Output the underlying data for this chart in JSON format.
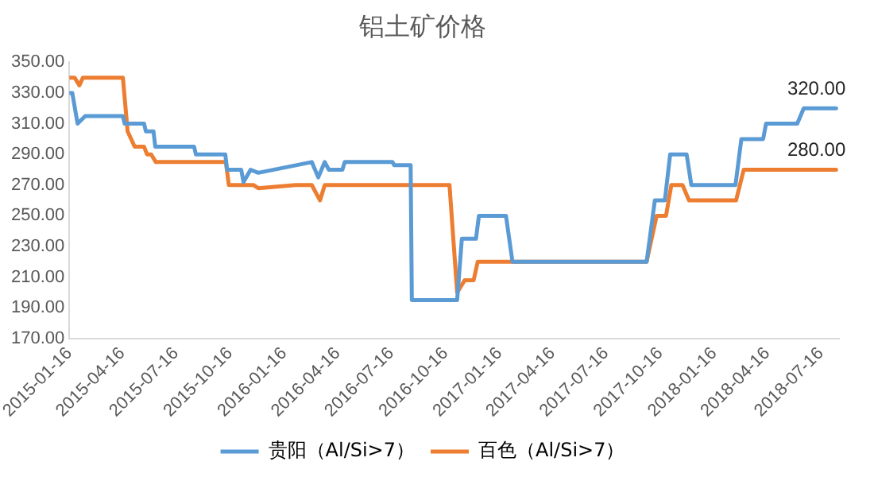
{
  "chart_data": {
    "type": "line",
    "title": "铝土矿价格",
    "xlim": [
      "2015-01-16",
      "2018-08-16"
    ],
    "xticks": [
      "2015-01-16",
      "2015-04-16",
      "2015-07-16",
      "2015-10-16",
      "2016-01-16",
      "2016-04-16",
      "2016-07-16",
      "2016-10-16",
      "2017-01-16",
      "2017-04-16",
      "2017-07-16",
      "2017-10-16",
      "2018-01-16",
      "2018-04-16",
      "2018-07-16"
    ],
    "ylim": [
      170,
      350
    ],
    "yticks": [
      {
        "value": 170,
        "label": "170.00"
      },
      {
        "value": 190,
        "label": "190.00"
      },
      {
        "value": 210,
        "label": "210.00"
      },
      {
        "value": 230,
        "label": "230.00"
      },
      {
        "value": 250,
        "label": "250.00"
      },
      {
        "value": 270,
        "label": "270.00"
      },
      {
        "value": 290,
        "label": "290.00"
      },
      {
        "value": 310,
        "label": "310.00"
      },
      {
        "value": 330,
        "label": "330.00"
      },
      {
        "value": 350,
        "label": "350.00"
      }
    ],
    "grid": false,
    "legend": "bottom",
    "marker": "none",
    "line_style": "solid",
    "series": [
      {
        "name": "贵阳（Al/Si>7）",
        "color": "#5b9bd5",
        "x": [
          "2015-01-16",
          "2015-01-21",
          "2015-01-30",
          "2015-02-12",
          "2015-04-17",
          "2015-04-20",
          "2015-05-23",
          "2015-05-26",
          "2015-06-08",
          "2015-06-11",
          "2015-08-16",
          "2015-08-19",
          "2015-10-08",
          "2015-10-11",
          "2015-11-04",
          "2015-11-08",
          "2015-11-20",
          "2015-12-03",
          "2016-03-03",
          "2016-03-14",
          "2016-03-25",
          "2016-04-01",
          "2016-04-24",
          "2016-04-28",
          "2016-07-18",
          "2016-07-21",
          "2016-08-18",
          "2016-08-20",
          "2016-11-05",
          "2016-11-13",
          "2016-12-07",
          "2016-12-12",
          "2017-01-27",
          "2017-02-07",
          "2017-09-23",
          "2017-10-07",
          "2017-10-24",
          "2017-11-02",
          "2017-11-30",
          "2017-12-08",
          "2018-02-21",
          "2018-03-03",
          "2018-04-09",
          "2018-04-14",
          "2018-06-06",
          "2018-06-17",
          "2018-08-11"
        ],
        "values": [
          330,
          330,
          310,
          315,
          315,
          310,
          310,
          305,
          305,
          295,
          295,
          290,
          290,
          280,
          280,
          272,
          280,
          278,
          285,
          275,
          285,
          280,
          280,
          285,
          285,
          283,
          283,
          195,
          195,
          235,
          235,
          250,
          250,
          220,
          220,
          260,
          260,
          290,
          290,
          270,
          270,
          300,
          300,
          310,
          310,
          320,
          320
        ]
      },
      {
        "name": "百色（Al/Si>7）",
        "color": "#ed7d31",
        "x": [
          "2015-01-16",
          "2015-01-25",
          "2015-02-02",
          "2015-02-08",
          "2015-04-17",
          "2015-04-25",
          "2015-05-07",
          "2015-05-23",
          "2015-05-28",
          "2015-06-04",
          "2015-06-12",
          "2015-10-09",
          "2015-10-14",
          "2015-11-25",
          "2015-12-03",
          "2016-02-05",
          "2016-03-03",
          "2016-03-17",
          "2016-03-25",
          "2016-10-23",
          "2016-11-05",
          "2016-11-18",
          "2016-12-03",
          "2016-12-10",
          "2017-09-23",
          "2017-10-10",
          "2017-10-26",
          "2017-11-04",
          "2017-11-23",
          "2017-12-04",
          "2018-02-22",
          "2018-03-07",
          "2018-08-11"
        ],
        "values": [
          340,
          340,
          335,
          340,
          340,
          305,
          295,
          295,
          290,
          290,
          285,
          285,
          270,
          270,
          268,
          270,
          270,
          260,
          270,
          270,
          200,
          208,
          208,
          220,
          220,
          250,
          250,
          270,
          270,
          260,
          260,
          280,
          280
        ]
      }
    ],
    "annotations": [
      {
        "text": "320.00",
        "x": "2018-08-11",
        "y": 320
      },
      {
        "text": "280.00",
        "x": "2018-08-11",
        "y": 280
      }
    ]
  }
}
